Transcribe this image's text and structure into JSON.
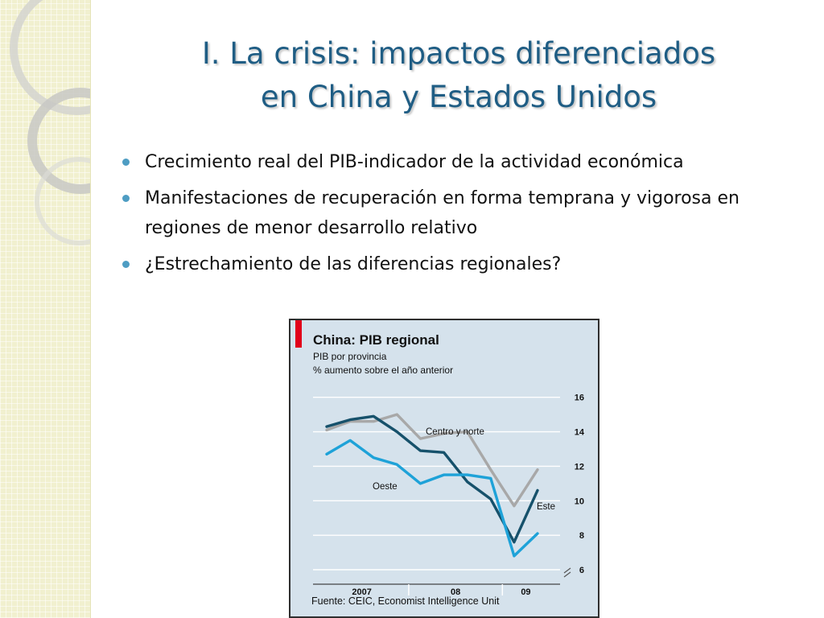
{
  "slide": {
    "title_line1": "I. La crisis: impactos diferenciados",
    "title_line2": "en China y Estados Unidos",
    "bullets": [
      {
        "text": "Crecimiento real del PIB-indicador de la actividad económica"
      },
      {
        "text": "Manifestaciones de recuperación en forma temprana y vigorosa en regiones de menor desarrollo relativo"
      },
      {
        "text": "¿Estrechamiento de las diferencias regionales?"
      }
    ]
  },
  "colors": {
    "title": "#1f5d84",
    "bullet": "#4e9dc3",
    "chart_bg": "#d5e2ec",
    "accent_red": "#e1001a"
  },
  "chart_data": {
    "type": "line",
    "title": "China: PIB regional",
    "subtitle_line1": "PIB por provincia",
    "subtitle_line2": "% aumento sobre el año anterior",
    "source": "Fuente: CEIC, Economist Intelligence Unit",
    "y_ticks": [
      "16",
      "14",
      "12",
      "10",
      "8",
      "6"
    ],
    "ylim": [
      6,
      16.5
    ],
    "y_axis_position": "right",
    "y_axis_break": true,
    "grid": true,
    "x_points": [
      "2007 Q1",
      "2007 Q2",
      "2007 Q3",
      "2007 Q4",
      "2008 Q1",
      "2008 Q2",
      "2008 Q3",
      "2008 Q4",
      "2009 Q1",
      "2009 Q2"
    ],
    "x_tick_labels": [
      {
        "label": "2007",
        "center_index": 1.5
      },
      {
        "label": "08",
        "center_index": 5.5
      },
      {
        "label": "09",
        "center_index": 8.5
      }
    ],
    "series": [
      {
        "name": "Centro y norte",
        "color": "#a8a8a8",
        "values": [
          14.1,
          14.6,
          14.6,
          15.0,
          13.6,
          13.9,
          14.0,
          11.8,
          9.7,
          11.8
        ]
      },
      {
        "name": "Este",
        "color": "#16516b",
        "values": [
          14.3,
          14.7,
          14.9,
          14.0,
          12.9,
          12.8,
          11.1,
          10.1,
          7.6,
          10.6
        ]
      },
      {
        "name": "Oeste",
        "color": "#1ea2d8",
        "values": [
          12.7,
          13.5,
          12.5,
          12.1,
          11.0,
          11.5,
          11.5,
          11.3,
          6.8,
          8.1
        ]
      }
    ]
  }
}
